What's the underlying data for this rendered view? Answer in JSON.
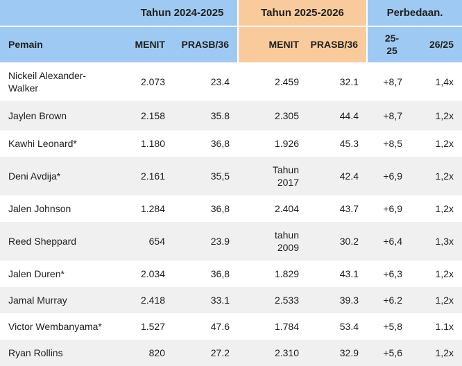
{
  "colors": {
    "season1_header_bg": "#9ec9f2",
    "season2_header_bg": "#f9cb9c",
    "row_stripe_bg": "#f0f0f0",
    "text": "#202020"
  },
  "chart_data": {
    "type": "table",
    "title": "",
    "column_groups": [
      {
        "label": "",
        "span": 1
      },
      {
        "label": "Tahun 2024-2025",
        "span": 2
      },
      {
        "label": "Tahun 2025-2026",
        "span": 2
      },
      {
        "label": "Perbedaan.",
        "span": 2
      }
    ],
    "columns": [
      "Pemain",
      "MENIT",
      "PRASB/36",
      "MENIT",
      "PRASB/36",
      "25-25",
      "26/25"
    ],
    "rows": [
      [
        "Nickeil Alexander-Walker",
        "2.073",
        "23.4",
        "2.459",
        "32.1",
        "+8,7",
        "1,4x"
      ],
      [
        "Jaylen Brown",
        "2.158",
        "35.8",
        "2.305",
        "44.4",
        "+8,7",
        "1,2x"
      ],
      [
        "Kawhi Leonard*",
        "1.180",
        "36,8",
        "1.926",
        "45.3",
        "+8,5",
        "1,2x"
      ],
      [
        "Deni Avdija*",
        "2.161",
        "35,5",
        "Tahun\n2017",
        "42.4",
        "+6,9",
        "1,2x"
      ],
      [
        "Jalen Johnson",
        "1.284",
        "36,8",
        "2.404",
        "43.7",
        "+6,9",
        "1,2x"
      ],
      [
        "Reed Sheppard",
        "654",
        "23.9",
        "tahun\n2009",
        "30.2",
        "+6,4",
        "1,3x"
      ],
      [
        "Jalen Duren*",
        "2.034",
        "36,8",
        "1.829",
        "43.1",
        "+6,3",
        "1,2x"
      ],
      [
        "Jamal Murray",
        "2.418",
        "33.1",
        "2.533",
        "39.3",
        "+6.2",
        "1,2x"
      ],
      [
        "Victor Wembanyama*",
        "1.527",
        "47.6",
        "1.784",
        "53.4",
        "+5,8",
        "1.1x"
      ],
      [
        "Ryan Rollins",
        "820",
        "27.2",
        "2.310",
        "32.9",
        "+5,6",
        "1,2x"
      ]
    ],
    "layout_hints": {
      "group_header_backgrounds": [
        "#9ec9f2",
        "#9ec9f2",
        "#f9cb9c",
        "#9ec9f2"
      ],
      "numeric_columns_right_aligned": true,
      "alternating_row_stripes": true
    }
  }
}
